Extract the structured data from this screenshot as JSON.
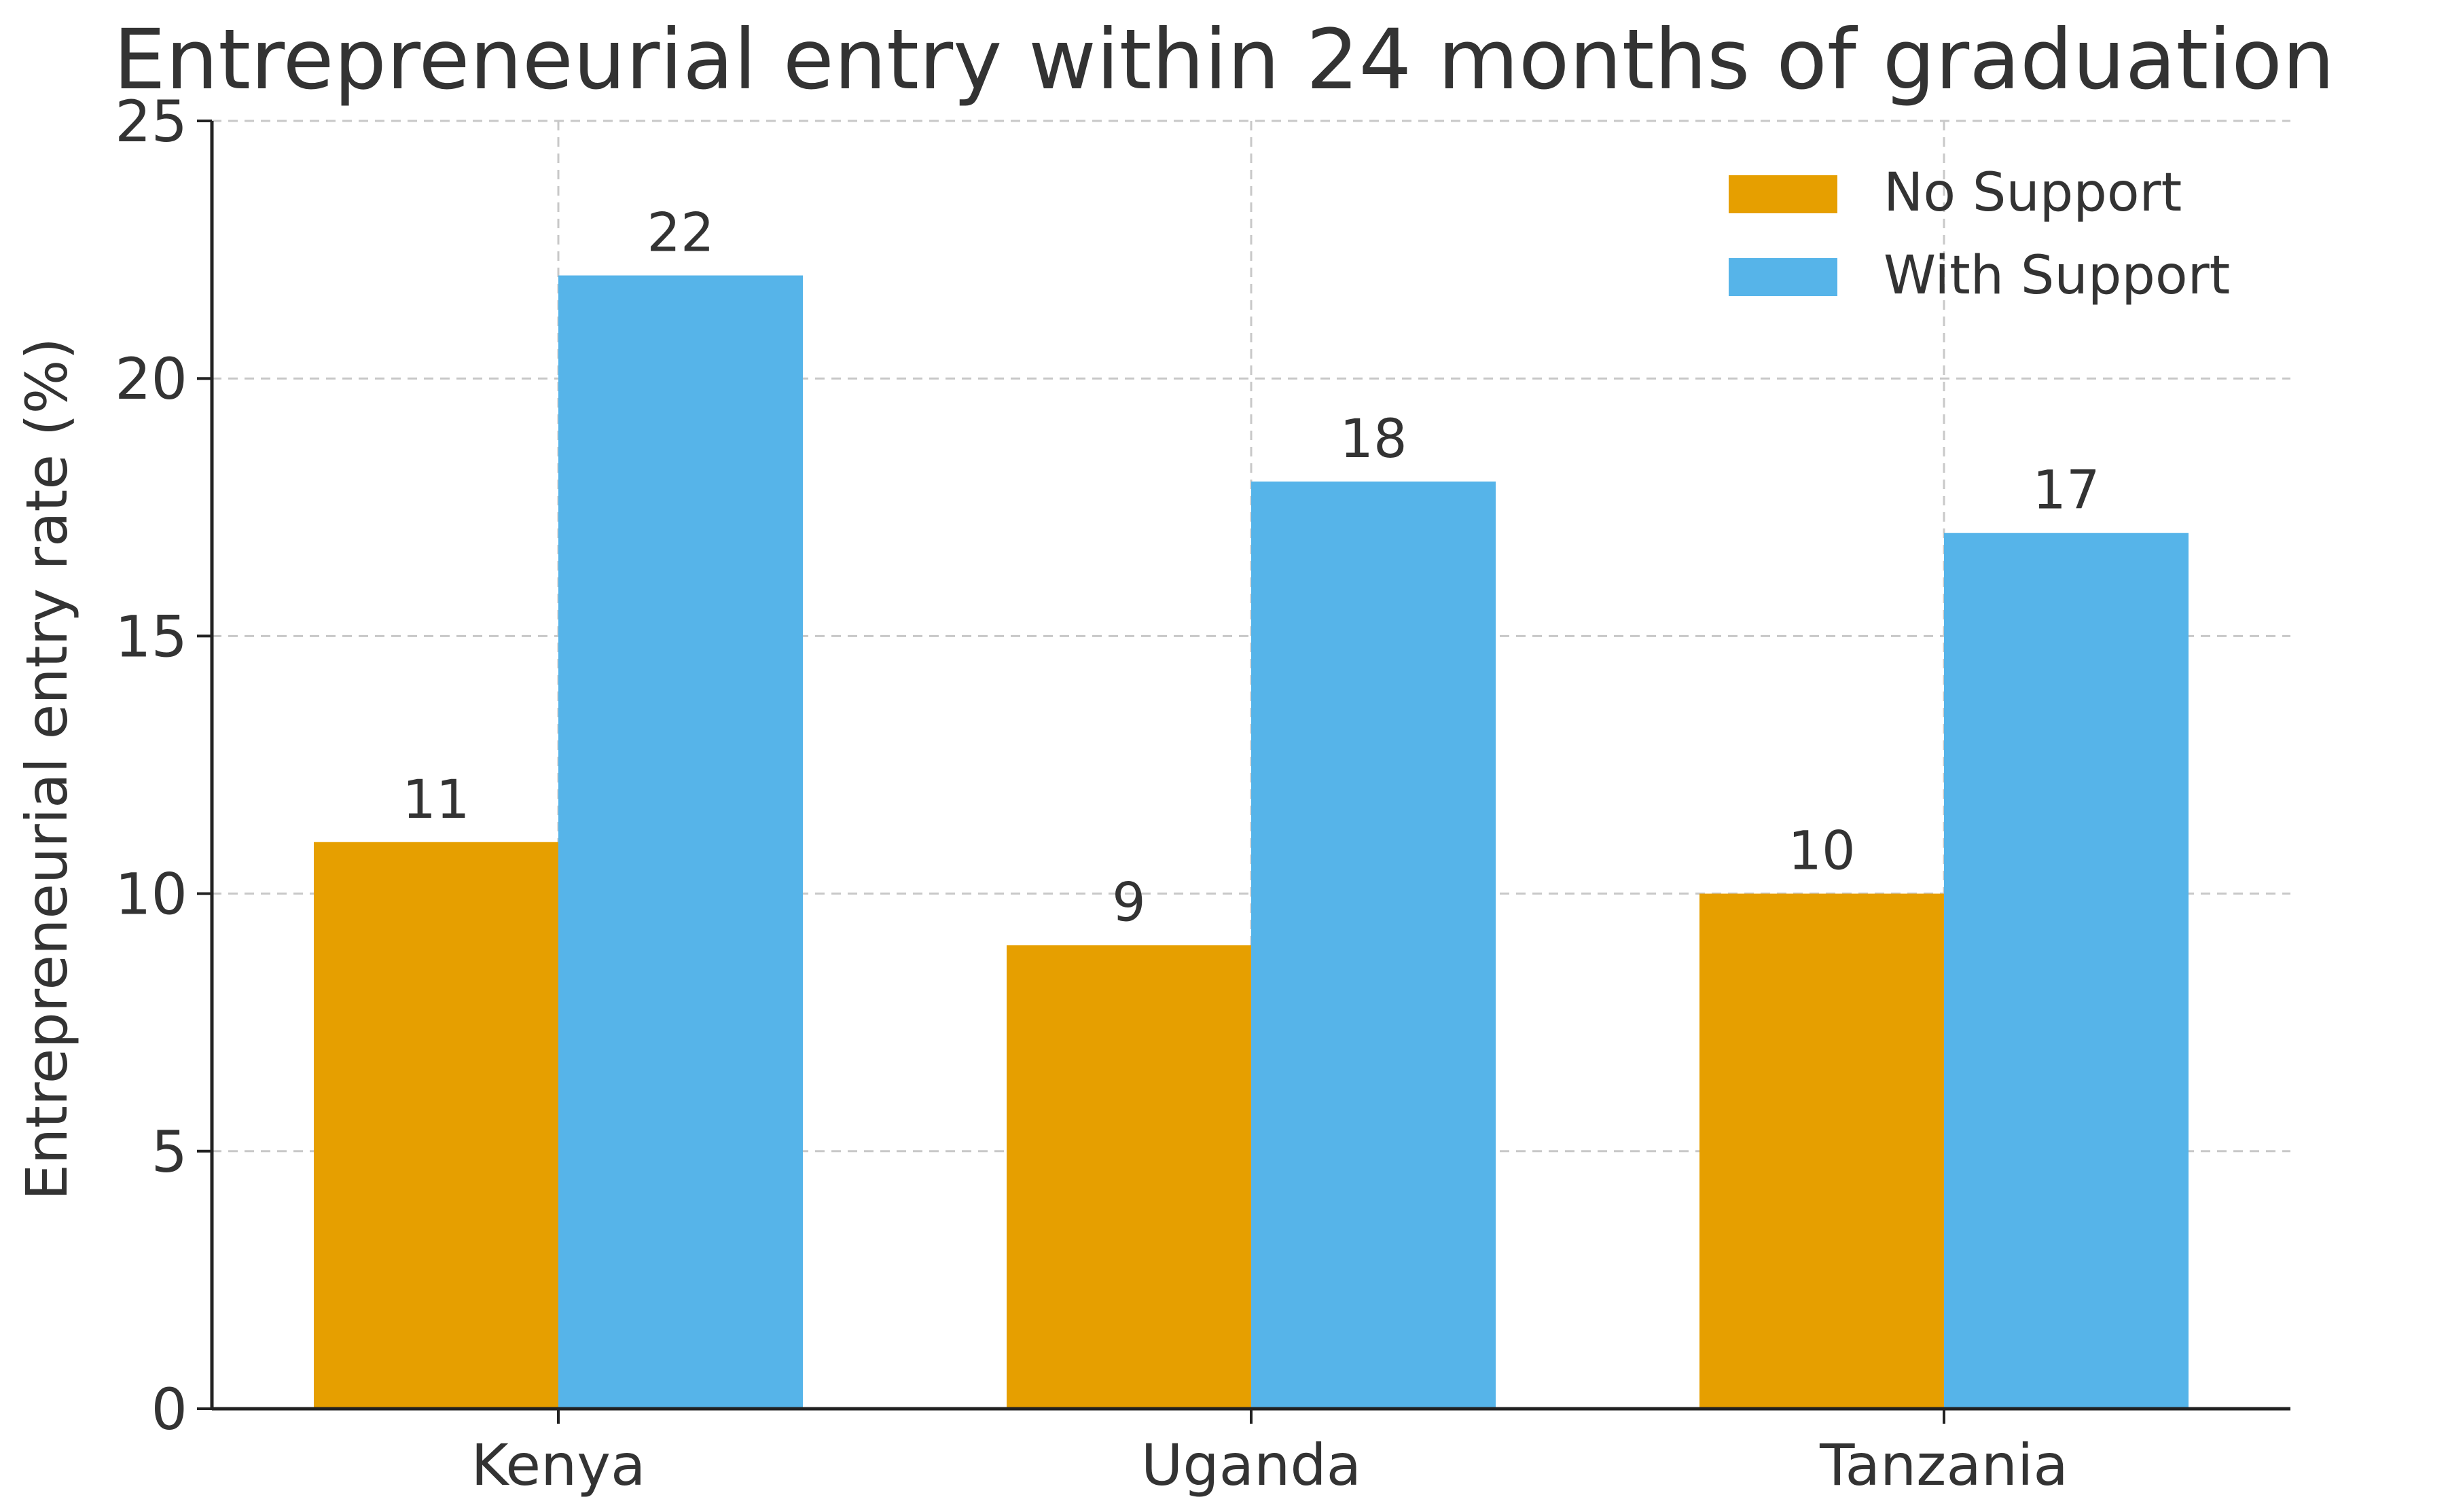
{
  "chart_data": {
    "type": "bar",
    "title": "Entrepreneurial entry within 24 months of graduation",
    "xlabel": "",
    "ylabel": "Entrepreneurial entry rate (%)",
    "categories": [
      "Kenya",
      "Uganda",
      "Tanzania"
    ],
    "series": [
      {
        "name": "No Support",
        "values": [
          11,
          9,
          10
        ],
        "color": "#E69F00"
      },
      {
        "name": "With Support",
        "values": [
          22,
          18,
          17
        ],
        "color": "#56B4E9"
      }
    ],
    "ylim": [
      0,
      25
    ],
    "yticks": [
      0,
      5,
      10,
      15,
      20,
      25
    ],
    "grid": true,
    "legend_position": "top-right",
    "data_labels": true
  }
}
